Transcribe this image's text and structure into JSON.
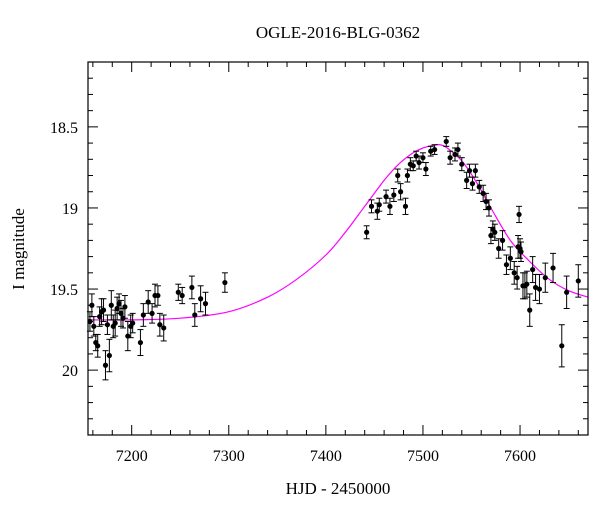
{
  "chart_data": {
    "type": "scatter",
    "title": "OGLE-2016-BLG-0362",
    "xlabel": "HJD - 2450000",
    "ylabel": "I magnitude",
    "xlim": [
      7155,
      7670
    ],
    "ylim": [
      20.4,
      18.1
    ],
    "y_inverted": true,
    "x_major_ticks": [
      7200,
      7300,
      7400,
      7500,
      7600
    ],
    "x_tick_labels": [
      "7200",
      "7300",
      "7400",
      "7500",
      "7600"
    ],
    "x_minor_step": 20,
    "y_major_ticks": [
      18.5,
      19,
      19.5,
      20
    ],
    "y_tick_labels": [
      "18.5",
      "19",
      "19.5",
      "20"
    ],
    "y_minor_step": 0.1,
    "grid": false,
    "colors": {
      "data": "#000000",
      "model": "#ff00ff"
    },
    "model": {
      "name": "model",
      "x": [
        7155,
        7200,
        7250,
        7300,
        7340,
        7370,
        7400,
        7420,
        7440,
        7460,
        7475,
        7490,
        7500,
        7510,
        7517,
        7525,
        7540,
        7555,
        7570,
        7590,
        7610,
        7630,
        7650,
        7670
      ],
      "y": [
        19.69,
        19.69,
        19.68,
        19.64,
        19.55,
        19.44,
        19.29,
        19.15,
        18.99,
        18.83,
        18.73,
        18.66,
        18.63,
        18.615,
        18.61,
        18.63,
        18.71,
        18.84,
        19.0,
        19.2,
        19.33,
        19.44,
        19.51,
        19.55
      ]
    },
    "series": [
      {
        "points": [
          {
            "x": 7157,
            "y": 19.7,
            "err": 0.06
          },
          {
            "x": 7159,
            "y": 19.6,
            "err": 0.07
          },
          {
            "x": 7161,
            "y": 19.73,
            "err": 0.06
          },
          {
            "x": 7163,
            "y": 19.83,
            "err": 0.05
          },
          {
            "x": 7165,
            "y": 19.85,
            "err": 0.07
          },
          {
            "x": 7167,
            "y": 19.67,
            "err": 0.06
          },
          {
            "x": 7169,
            "y": 19.64,
            "err": 0.08
          },
          {
            "x": 7171,
            "y": 19.63,
            "err": 0.07
          },
          {
            "x": 7173,
            "y": 19.97,
            "err": 0.09
          },
          {
            "x": 7175,
            "y": 19.72,
            "err": 0.06
          },
          {
            "x": 7177,
            "y": 19.91,
            "err": 0.1
          },
          {
            "x": 7179,
            "y": 19.6,
            "err": 0.09
          },
          {
            "x": 7181,
            "y": 19.73,
            "err": 0.07
          },
          {
            "x": 7183,
            "y": 19.71,
            "err": 0.08
          },
          {
            "x": 7185,
            "y": 19.62,
            "err": 0.07
          },
          {
            "x": 7187,
            "y": 19.59,
            "err": 0.06
          },
          {
            "x": 7189,
            "y": 19.65,
            "err": 0.08
          },
          {
            "x": 7191,
            "y": 19.68,
            "err": 0.06
          },
          {
            "x": 7193,
            "y": 19.61,
            "err": 0.07
          },
          {
            "x": 7196,
            "y": 19.79,
            "err": 0.09
          },
          {
            "x": 7199,
            "y": 19.73,
            "err": 0.07
          },
          {
            "x": 7201,
            "y": 19.71,
            "err": 0.06
          },
          {
            "x": 7209,
            "y": 19.83,
            "err": 0.08
          },
          {
            "x": 7212,
            "y": 19.66,
            "err": 0.07
          },
          {
            "x": 7217,
            "y": 19.58,
            "err": 0.07
          },
          {
            "x": 7221,
            "y": 19.65,
            "err": 0.06
          },
          {
            "x": 7224,
            "y": 19.54,
            "err": 0.07
          },
          {
            "x": 7227,
            "y": 19.54,
            "err": 0.06
          },
          {
            "x": 7229,
            "y": 19.72,
            "err": 0.07
          },
          {
            "x": 7233,
            "y": 19.74,
            "err": 0.08
          },
          {
            "x": 7248,
            "y": 19.52,
            "err": 0.05
          },
          {
            "x": 7252,
            "y": 19.54,
            "err": 0.05
          },
          {
            "x": 7262,
            "y": 19.49,
            "err": 0.07
          },
          {
            "x": 7265,
            "y": 19.66,
            "err": 0.07
          },
          {
            "x": 7271,
            "y": 19.56,
            "err": 0.08
          },
          {
            "x": 7276,
            "y": 19.59,
            "err": 0.07
          },
          {
            "x": 7296,
            "y": 19.46,
            "err": 0.06
          },
          {
            "x": 7442,
            "y": 19.15,
            "err": 0.04
          },
          {
            "x": 7447,
            "y": 18.99,
            "err": 0.04
          },
          {
            "x": 7453,
            "y": 19.02,
            "err": 0.05
          },
          {
            "x": 7455,
            "y": 18.98,
            "err": 0.04
          },
          {
            "x": 7462,
            "y": 18.93,
            "err": 0.04
          },
          {
            "x": 7466,
            "y": 18.99,
            "err": 0.05
          },
          {
            "x": 7470,
            "y": 18.92,
            "err": 0.04
          },
          {
            "x": 7474,
            "y": 18.8,
            "err": 0.04
          },
          {
            "x": 7477,
            "y": 18.9,
            "err": 0.05
          },
          {
            "x": 7482,
            "y": 18.99,
            "err": 0.05
          },
          {
            "x": 7484,
            "y": 18.8,
            "err": 0.04
          },
          {
            "x": 7487,
            "y": 18.73,
            "err": 0.04
          },
          {
            "x": 7490,
            "y": 18.74,
            "err": 0.03
          },
          {
            "x": 7493,
            "y": 18.68,
            "err": 0.03
          },
          {
            "x": 7496,
            "y": 18.72,
            "err": 0.04
          },
          {
            "x": 7500,
            "y": 18.69,
            "err": 0.03
          },
          {
            "x": 7503,
            "y": 18.76,
            "err": 0.04
          },
          {
            "x": 7508,
            "y": 18.65,
            "err": 0.03
          },
          {
            "x": 7512,
            "y": 18.64,
            "err": 0.03
          },
          {
            "x": 7524,
            "y": 18.59,
            "err": 0.03
          },
          {
            "x": 7528,
            "y": 18.69,
            "err": 0.04
          },
          {
            "x": 7533,
            "y": 18.67,
            "err": 0.04
          },
          {
            "x": 7536,
            "y": 18.64,
            "err": 0.04
          },
          {
            "x": 7540,
            "y": 18.73,
            "err": 0.04
          },
          {
            "x": 7545,
            "y": 18.83,
            "err": 0.05
          },
          {
            "x": 7548,
            "y": 18.77,
            "err": 0.04
          },
          {
            "x": 7551,
            "y": 18.85,
            "err": 0.04
          },
          {
            "x": 7554,
            "y": 18.77,
            "err": 0.04
          },
          {
            "x": 7558,
            "y": 18.87,
            "err": 0.04
          },
          {
            "x": 7562,
            "y": 18.91,
            "err": 0.05
          },
          {
            "x": 7565,
            "y": 18.96,
            "err": 0.05
          },
          {
            "x": 7568,
            "y": 19.0,
            "err": 0.05
          },
          {
            "x": 7570,
            "y": 19.17,
            "err": 0.05
          },
          {
            "x": 7572,
            "y": 19.13,
            "err": 0.05
          },
          {
            "x": 7574,
            "y": 19.15,
            "err": 0.05
          },
          {
            "x": 7578,
            "y": 19.25,
            "err": 0.06
          },
          {
            "x": 7582,
            "y": 19.2,
            "err": 0.06
          },
          {
            "x": 7586,
            "y": 19.35,
            "err": 0.06
          },
          {
            "x": 7590,
            "y": 19.31,
            "err": 0.07
          },
          {
            "x": 7594,
            "y": 19.4,
            "err": 0.07
          },
          {
            "x": 7597,
            "y": 19.43,
            "err": 0.07
          },
          {
            "x": 7598,
            "y": 19.24,
            "err": 0.07
          },
          {
            "x": 7599,
            "y": 19.04,
            "err": 0.05
          },
          {
            "x": 7600,
            "y": 19.25,
            "err": 0.06
          },
          {
            "x": 7601,
            "y": 19.27,
            "err": 0.06
          },
          {
            "x": 7603,
            "y": 19.48,
            "err": 0.08
          },
          {
            "x": 7605,
            "y": 19.48,
            "err": 0.08
          },
          {
            "x": 7607,
            "y": 19.47,
            "err": 0.08
          },
          {
            "x": 7610,
            "y": 19.63,
            "err": 0.1
          },
          {
            "x": 7613,
            "y": 19.38,
            "err": 0.08
          },
          {
            "x": 7616,
            "y": 19.49,
            "err": 0.08
          },
          {
            "x": 7620,
            "y": 19.5,
            "err": 0.09
          },
          {
            "x": 7626,
            "y": 19.43,
            "err": 0.09
          },
          {
            "x": 7634,
            "y": 19.37,
            "err": 0.09
          },
          {
            "x": 7643,
            "y": 19.85,
            "err": 0.13
          },
          {
            "x": 7648,
            "y": 19.52,
            "err": 0.1
          },
          {
            "x": 7660,
            "y": 19.45,
            "err": 0.1
          }
        ]
      }
    ]
  }
}
